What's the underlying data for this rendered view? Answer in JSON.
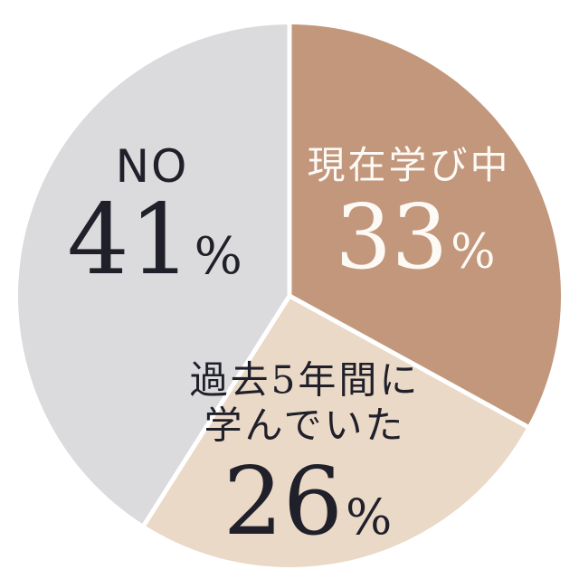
{
  "page": {
    "background": "#ffffff"
  },
  "chart_data": {
    "type": "pie",
    "title": "",
    "direction": "clockwise",
    "start_angle_deg": 0,
    "separator_color": "#ffffff",
    "legend": "none",
    "slices": [
      {
        "id": "currently-learning",
        "label": "現在学び中",
        "label_lines": [
          "現在学び中"
        ],
        "value": 33,
        "unit": "%",
        "color": "#c2977b",
        "text_color": "#fdfaf6"
      },
      {
        "id": "studied-past-5-years",
        "label": "過去5年間に学んでいた",
        "label_lines": [
          "過去5年間に",
          "学んでいた"
        ],
        "value": 26,
        "unit": "%",
        "color": "#ebd9c8",
        "text_color": "#20202a"
      },
      {
        "id": "no",
        "label": "NO",
        "label_lines": [
          "NO"
        ],
        "value": 41,
        "unit": "%",
        "color": "#dbdbdd",
        "text_color": "#20202a"
      }
    ]
  }
}
